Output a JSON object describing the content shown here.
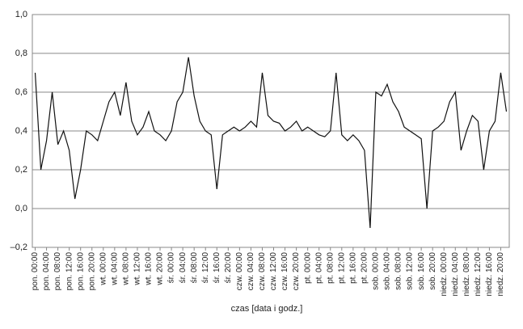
{
  "chart_data": {
    "type": "line",
    "x_label": "czas [data i godz.]",
    "categories": [
      "pon. 00:00",
      null,
      "pon. 04:00",
      null,
      "pon. 08:00",
      null,
      "pon. 12:00",
      null,
      "pon. 16:00",
      null,
      "pon. 20:00",
      null,
      "wt. 00:00",
      null,
      "wt. 04:00",
      null,
      "wt. 08:00",
      null,
      "wt. 12:00",
      null,
      "wt. 16:00",
      null,
      "wt. 20:00",
      null,
      "śr. 00:00",
      null,
      "śr. 04:00",
      null,
      "śr. 08:00",
      null,
      "śr. 12:00",
      null,
      "śr. 16:00",
      null,
      "śr. 20:00",
      null,
      "czw. 00:00",
      null,
      "czw. 04:00",
      null,
      "czw. 08:00",
      null,
      "czw. 12:00",
      null,
      "czw. 16:00",
      null,
      "czw. 20:00",
      null,
      "pt. 00:00",
      null,
      "pt. 04:00",
      null,
      "pt. 08:00",
      null,
      "pt. 12:00",
      null,
      "pt. 16:00",
      null,
      "pt. 20:00",
      null,
      "sob. 00:00",
      null,
      "sob. 04:00",
      null,
      "sob. 08:00",
      null,
      "sob. 12:00",
      null,
      "sob. 16:00",
      null,
      "sob. 20:00",
      null,
      "niedz. 00:00",
      null,
      "niedz. 04:00",
      null,
      "niedz. 08:00",
      null,
      "niedz. 12:00",
      null,
      "niedz. 16:00",
      null,
      "niedz. 20:00",
      null
    ],
    "values": [
      0.7,
      0.2,
      0.35,
      0.6,
      0.33,
      0.4,
      0.3,
      0.05,
      0.2,
      0.4,
      0.38,
      0.35,
      0.45,
      0.55,
      0.6,
      0.48,
      0.65,
      0.45,
      0.38,
      0.42,
      0.5,
      0.4,
      0.38,
      0.35,
      0.4,
      0.55,
      0.6,
      0.78,
      0.58,
      0.45,
      0.4,
      0.38,
      0.1,
      0.38,
      0.4,
      0.42,
      0.4,
      0.42,
      0.45,
      0.42,
      0.7,
      0.48,
      0.45,
      0.44,
      0.4,
      0.42,
      0.45,
      0.4,
      0.42,
      0.4,
      0.38,
      0.37,
      0.4,
      0.7,
      0.38,
      0.35,
      0.38,
      0.35,
      0.3,
      -0.1,
      0.6,
      0.58,
      0.64,
      0.55,
      0.5,
      0.42,
      0.4,
      0.38,
      0.36,
      0.0,
      0.4,
      0.42,
      0.45,
      0.55,
      0.6,
      0.3,
      0.4,
      0.48,
      0.45,
      0.2,
      0.4,
      0.45,
      0.7,
      0.5
    ],
    "color": "#111111",
    "ylim": [
      -0.2,
      1.0
    ],
    "yticks": [
      {
        "value": -0.2,
        "label": "–0,2"
      },
      {
        "value": 0.0,
        "label": "0,0"
      },
      {
        "value": 0.2,
        "label": "0,2"
      },
      {
        "value": 0.4,
        "label": "0,4"
      },
      {
        "value": 0.6,
        "label": "0,6"
      },
      {
        "value": 0.8,
        "label": "0,8"
      },
      {
        "value": 1.0,
        "label": "1,0"
      }
    ],
    "grid": true
  }
}
